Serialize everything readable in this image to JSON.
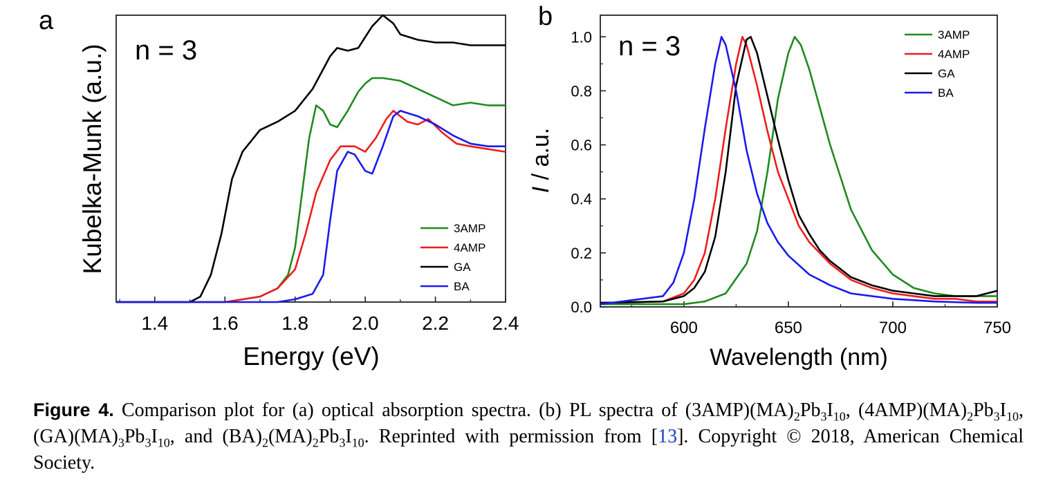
{
  "panels": [
    {
      "letter": "a",
      "annotation": "n = 3",
      "xlabel": "Energy (eV)",
      "ylabel": "Kubelka-Munk (a.u.)",
      "xticks": [
        "1.4",
        "1.6",
        "1.8",
        "2.0",
        "2.2",
        "2.4"
      ],
      "legend": [
        "3AMP",
        "4AMP",
        "GA",
        "BA"
      ]
    },
    {
      "letter": "b",
      "annotation": "n = 3",
      "xlabel": "Wavelength (nm)",
      "ylabel_italic": "I",
      "ylabel_rest": " / a.u.",
      "xticks": [
        "600",
        "650",
        "700",
        "750"
      ],
      "yticks": [
        "0.0",
        "0.2",
        "0.4",
        "0.6",
        "0.8",
        "1.0"
      ],
      "legend": [
        "3AMP",
        "4AMP",
        "GA",
        "BA"
      ]
    }
  ],
  "colors": {
    "3AMP": "#1f8a1f",
    "4AMP": "#ee1c1c",
    "GA": "#000000",
    "BA": "#1a1aee"
  },
  "caption": {
    "label": "Figure 4.",
    "text_1": " Comparison plot for (a) optical absorption spectra. (b) PL spectra of (3AMP)(MA)",
    "sub_1": "2",
    "text_2": "Pb",
    "sub_2": "3",
    "text_3": "I",
    "sub_3": "10",
    "text_4": ", (4AMP)(MA)",
    "sub_4": "2",
    "text_5": "Pb",
    "sub_5": "3",
    "text_6": "I",
    "sub_6": "10",
    "text_7": ", (GA)(MA)",
    "sub_7": "3",
    "text_8": "Pb",
    "sub_8": "3",
    "text_9": "I",
    "sub_9": "10",
    "text_10": ", and (BA)",
    "sub_10": "2",
    "text_11": "(MA)",
    "sub_11": "2",
    "text_12": "Pb",
    "sub_12": "3",
    "text_13": "I",
    "sub_13": "10",
    "text_14": ". Reprinted with permission from [",
    "ref": "13",
    "text_15": "]. Copyright © 2018, American Chemical Society."
  },
  "chart_data": [
    {
      "type": "line",
      "xlabel": "Energy (eV)",
      "ylabel": "Kubelka-Munk (a.u.)",
      "xlim": [
        1.29,
        2.4
      ],
      "ylim": [
        0,
        1.05
      ],
      "series": [
        {
          "name": "3AMP",
          "x": [
            1.29,
            1.6,
            1.7,
            1.75,
            1.78,
            1.8,
            1.82,
            1.84,
            1.86,
            1.88,
            1.9,
            1.92,
            1.95,
            1.98,
            2.0,
            2.02,
            2.05,
            2.1,
            2.15,
            2.2,
            2.25,
            2.3,
            2.35,
            2.4
          ],
          "y": [
            0,
            0,
            0.02,
            0.05,
            0.1,
            0.2,
            0.4,
            0.6,
            0.72,
            0.7,
            0.65,
            0.64,
            0.7,
            0.77,
            0.8,
            0.82,
            0.82,
            0.81,
            0.78,
            0.75,
            0.72,
            0.73,
            0.72,
            0.72
          ]
        },
        {
          "name": "4AMP",
          "x": [
            1.29,
            1.6,
            1.7,
            1.75,
            1.8,
            1.83,
            1.86,
            1.9,
            1.93,
            1.97,
            2.0,
            2.03,
            2.06,
            2.08,
            2.12,
            2.15,
            2.18,
            2.22,
            2.26,
            2.3,
            2.35,
            2.4
          ],
          "y": [
            0,
            0,
            0.02,
            0.05,
            0.12,
            0.25,
            0.4,
            0.52,
            0.57,
            0.57,
            0.55,
            0.6,
            0.67,
            0.7,
            0.66,
            0.65,
            0.67,
            0.62,
            0.58,
            0.57,
            0.56,
            0.55
          ]
        },
        {
          "name": "GA",
          "x": [
            1.29,
            1.5,
            1.53,
            1.56,
            1.59,
            1.62,
            1.65,
            1.7,
            1.75,
            1.8,
            1.85,
            1.9,
            1.92,
            1.95,
            1.98,
            2.0,
            2.02,
            2.05,
            2.08,
            2.1,
            2.15,
            2.2,
            2.25,
            2.3,
            2.35,
            2.4
          ],
          "y": [
            0,
            0,
            0.02,
            0.1,
            0.25,
            0.45,
            0.55,
            0.63,
            0.66,
            0.7,
            0.78,
            0.9,
            0.93,
            0.92,
            0.93,
            0.97,
            1.01,
            1.05,
            1.02,
            0.98,
            0.96,
            0.95,
            0.95,
            0.94,
            0.94,
            0.94
          ]
        },
        {
          "name": "BA",
          "x": [
            1.29,
            1.75,
            1.8,
            1.85,
            1.88,
            1.9,
            1.92,
            1.95,
            1.97,
            2.0,
            2.02,
            2.05,
            2.08,
            2.1,
            2.15,
            2.2,
            2.25,
            2.3,
            2.35,
            2.4
          ],
          "y": [
            0,
            0,
            0.01,
            0.03,
            0.1,
            0.3,
            0.48,
            0.55,
            0.54,
            0.48,
            0.47,
            0.57,
            0.68,
            0.7,
            0.68,
            0.65,
            0.61,
            0.58,
            0.57,
            0.57
          ]
        }
      ]
    },
    {
      "type": "line",
      "xlabel": "Wavelength (nm)",
      "ylabel": "I / a.u.",
      "xlim": [
        560,
        750
      ],
      "ylim": [
        0,
        1.08
      ],
      "series": [
        {
          "name": "3AMP",
          "x": [
            560,
            600,
            610,
            620,
            630,
            635,
            640,
            645,
            650,
            653,
            656,
            660,
            665,
            670,
            680,
            690,
            700,
            710,
            720,
            730,
            740,
            750
          ],
          "y": [
            0.01,
            0.01,
            0.02,
            0.05,
            0.16,
            0.28,
            0.5,
            0.77,
            0.94,
            1.0,
            0.97,
            0.88,
            0.74,
            0.6,
            0.36,
            0.21,
            0.12,
            0.07,
            0.05,
            0.04,
            0.04,
            0.04
          ]
        },
        {
          "name": "4AMP",
          "x": [
            560,
            590,
            600,
            605,
            610,
            615,
            620,
            625,
            628,
            630,
            635,
            640,
            645,
            650,
            655,
            660,
            665,
            670,
            680,
            690,
            700,
            710,
            720,
            730,
            740,
            750
          ],
          "y": [
            0.015,
            0.02,
            0.05,
            0.1,
            0.2,
            0.4,
            0.66,
            0.9,
            1.0,
            0.97,
            0.82,
            0.65,
            0.5,
            0.4,
            0.3,
            0.24,
            0.2,
            0.16,
            0.1,
            0.07,
            0.05,
            0.04,
            0.03,
            0.03,
            0.02,
            0.02
          ]
        },
        {
          "name": "GA",
          "x": [
            560,
            590,
            600,
            605,
            610,
            615,
            620,
            625,
            630,
            632,
            635,
            640,
            645,
            650,
            655,
            660,
            665,
            670,
            680,
            690,
            700,
            710,
            720,
            730,
            740,
            750
          ],
          "y": [
            0.015,
            0.02,
            0.04,
            0.07,
            0.13,
            0.26,
            0.5,
            0.82,
            0.99,
            1.0,
            0.94,
            0.78,
            0.62,
            0.47,
            0.34,
            0.27,
            0.21,
            0.17,
            0.11,
            0.08,
            0.06,
            0.05,
            0.04,
            0.04,
            0.04,
            0.06
          ]
        },
        {
          "name": "BA",
          "x": [
            560,
            590,
            595,
            600,
            605,
            610,
            615,
            618,
            620,
            625,
            630,
            635,
            640,
            645,
            650,
            660,
            670,
            680,
            690,
            700,
            720,
            740,
            750
          ],
          "y": [
            0.01,
            0.04,
            0.09,
            0.2,
            0.4,
            0.66,
            0.9,
            1.0,
            0.97,
            0.8,
            0.58,
            0.42,
            0.31,
            0.24,
            0.19,
            0.12,
            0.08,
            0.05,
            0.04,
            0.03,
            0.02,
            0.015,
            0.015
          ]
        }
      ]
    }
  ]
}
